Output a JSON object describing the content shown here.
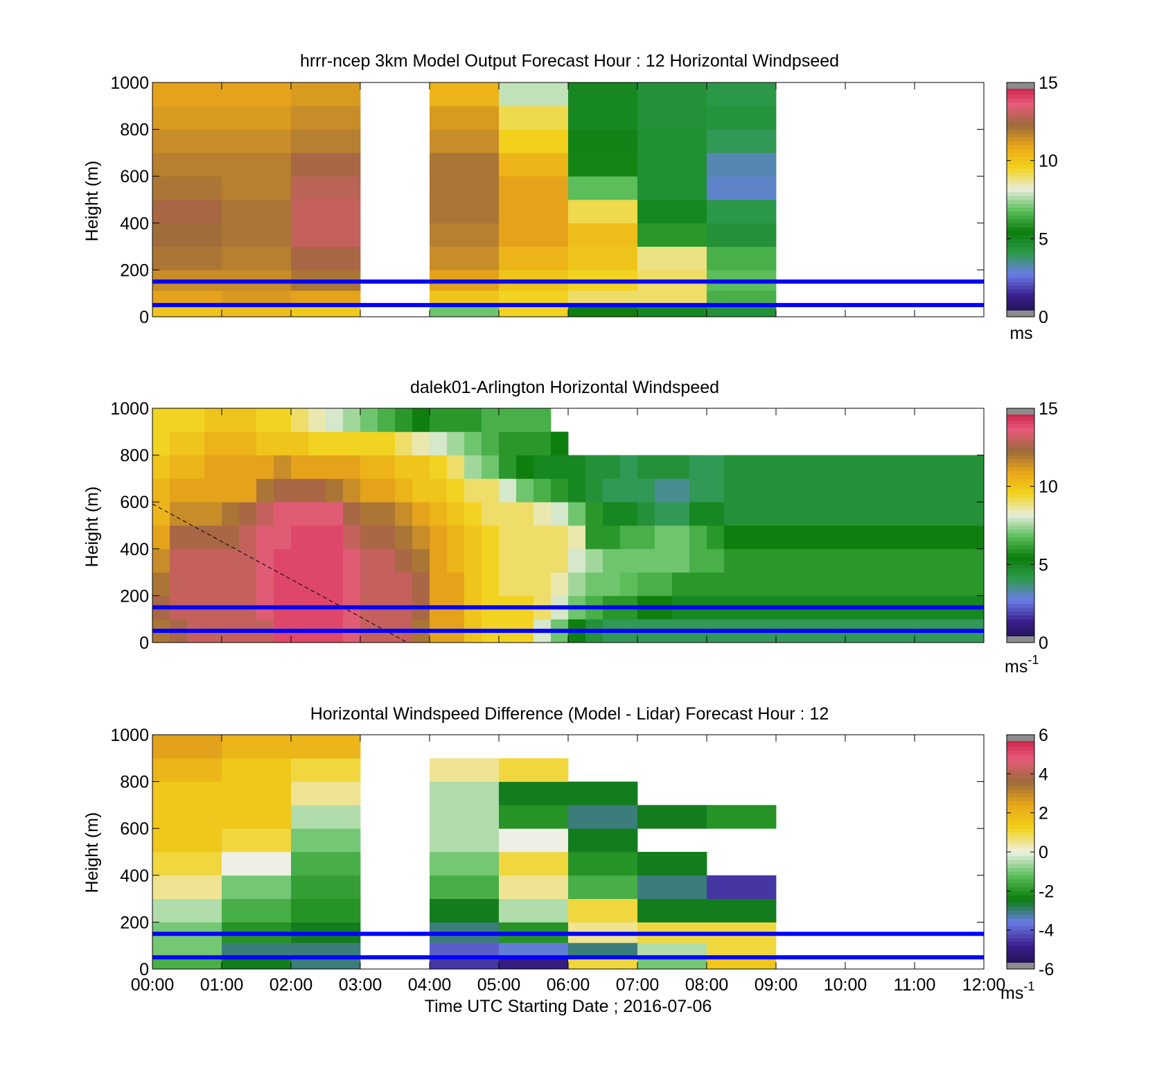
{
  "figure": {
    "xlabel": "Time UTC  Starting Date ; 2016-07-06",
    "xticks": [
      "00:00",
      "01:00",
      "02:00",
      "03:00",
      "04:00",
      "05:00",
      "06:00",
      "07:00",
      "08:00",
      "09:00",
      "10:00",
      "11:00",
      "12:00"
    ]
  },
  "colors": {
    "reference_lines": "#0000ff",
    "colormap_speed": [
      "#1b1045",
      "#3a1e8c",
      "#6a7de8",
      "#2e9a4c",
      "#0b7d0b",
      "#5cbf5c",
      "#e8eedc",
      "#f2d21c",
      "#e9a718",
      "#9c6a3c",
      "#e85a7a",
      "#c2143c"
    ],
    "colormap_diff": [
      "#1b1045",
      "#3a1e8c",
      "#6a7de8",
      "#0b7d0b",
      "#5cbf5c",
      "#eef0e6",
      "#f2d21c",
      "#e9a718",
      "#9c6a3c",
      "#e85a7a",
      "#c2143c"
    ]
  },
  "chart_data": [
    {
      "type": "heatmap",
      "title": "hrrr-ncep 3km Model Output   Forecast Hour : 12 Horizontal Windpseed",
      "ylabel": "Height (m)",
      "xlim": [
        0,
        12
      ],
      "ylim": [
        0,
        1000
      ],
      "yticks": [
        "0",
        "200",
        "400",
        "600",
        "800",
        "1000"
      ],
      "colorbar": {
        "range": [
          0,
          15
        ],
        "ticks": [
          "0",
          "5",
          "10",
          "15"
        ],
        "unit": "ms"
      },
      "reference_heights_m": [
        50,
        150
      ],
      "columns_hours": [
        0,
        1,
        2,
        4,
        5,
        6,
        7,
        8
      ],
      "rows_m": [
        25,
        75,
        150,
        250,
        350,
        450,
        550,
        650,
        750,
        850,
        950
      ],
      "values": [
        [
          10.0,
          10.2,
          9.8,
          7.0,
          9.5,
          5.5,
          5.0,
          4.5
        ],
        [
          11.0,
          11.2,
          11.0,
          10.0,
          9.5,
          9.0,
          9.0,
          6.5
        ],
        [
          11.5,
          11.5,
          12.0,
          11.0,
          10.0,
          9.5,
          9.0,
          6.8
        ],
        [
          12.0,
          11.8,
          12.5,
          11.5,
          10.5,
          10.0,
          8.8,
          6.5
        ],
        [
          12.2,
          12.0,
          13.0,
          11.8,
          11.0,
          10.2,
          6.0,
          4.5
        ],
        [
          12.5,
          12.0,
          13.0,
          12.0,
          11.0,
          9.2,
          5.0,
          4.2
        ],
        [
          12.0,
          11.8,
          12.8,
          12.0,
          11.0,
          6.8,
          4.6,
          3.0
        ],
        [
          11.8,
          11.8,
          12.5,
          12.0,
          10.5,
          5.6,
          4.6,
          3.2
        ],
        [
          11.5,
          11.5,
          11.8,
          11.5,
          9.6,
          5.2,
          4.6,
          4.0
        ],
        [
          11.2,
          11.2,
          11.5,
          11.2,
          9.2,
          5.0,
          4.5,
          4.4
        ],
        [
          11.0,
          11.0,
          11.2,
          10.5,
          7.8,
          5.0,
          4.5,
          4.2
        ]
      ]
    },
    {
      "type": "heatmap",
      "title": "dalek01-Arlington  Horizontal Windspeed",
      "ylabel": "Height (m)",
      "xlim": [
        0,
        12
      ],
      "ylim": [
        0,
        1000
      ],
      "yticks": [
        "0",
        "200",
        "400",
        "600",
        "800",
        "1000"
      ],
      "colorbar": {
        "range": [
          0,
          15
        ],
        "ticks": [
          "0",
          "5",
          "10",
          "15"
        ],
        "unit": "ms",
        "unit_exponent": "-1"
      },
      "reference_heights_m": [
        50,
        150
      ],
      "time_step_hours": 0.25,
      "rows_m": [
        50,
        150,
        250,
        350,
        450,
        550,
        650,
        750,
        850,
        950
      ],
      "values": [
        [
          12.0,
          12.5,
          13.0,
          13.0,
          13.0,
          13.0,
          13.0,
          14.0,
          14.0,
          14.0,
          14.0,
          13.5,
          13.0,
          13.0,
          13.0,
          12.0,
          11.0,
          11.0,
          10.0,
          9.5,
          9.5,
          9.5,
          8.0,
          7.0,
          5.5,
          4.5,
          4.0,
          4.0,
          4.0,
          4.0,
          4.0,
          4.0,
          4.0,
          4.0,
          4.0,
          4.0,
          4.0,
          4.0,
          4.0,
          4.0,
          4.0,
          4.0,
          4.0,
          4.0,
          4.0,
          4.0,
          4.0,
          4.0
        ],
        [
          12.5,
          13.0,
          13.0,
          13.0,
          13.0,
          13.0,
          13.5,
          14.0,
          14.0,
          14.0,
          14.0,
          13.5,
          13.0,
          13.0,
          13.0,
          12.5,
          11.0,
          11.0,
          10.0,
          9.5,
          9.5,
          9.5,
          9.0,
          8.0,
          7.0,
          6.5,
          6.0,
          6.0,
          5.5,
          5.5,
          5.0,
          5.0,
          5.0,
          5.0,
          5.0,
          5.0,
          5.0,
          5.0,
          5.0,
          5.0,
          5.0,
          5.0,
          5.0,
          5.0,
          5.0,
          5.0,
          5.0,
          5.0
        ],
        [
          12.0,
          13.0,
          13.0,
          13.0,
          13.0,
          13.0,
          13.5,
          14.0,
          14.0,
          14.0,
          14.0,
          13.5,
          13.0,
          13.0,
          13.0,
          12.5,
          11.0,
          11.0,
          10.0,
          9.5,
          9.0,
          9.0,
          9.0,
          8.5,
          7.5,
          7.0,
          7.0,
          6.8,
          6.5,
          6.5,
          6.0,
          6.0,
          6.0,
          6.0,
          6.0,
          6.0,
          6.0,
          6.0,
          6.0,
          6.0,
          6.0,
          6.0,
          6.0,
          6.0,
          6.0,
          6.0,
          6.0,
          6.0
        ],
        [
          11.5,
          13.0,
          13.0,
          13.0,
          13.0,
          13.0,
          13.5,
          14.0,
          14.0,
          14.0,
          14.0,
          13.5,
          13.0,
          13.0,
          12.5,
          12.0,
          11.0,
          10.5,
          10.0,
          9.5,
          9.0,
          9.0,
          9.0,
          9.0,
          8.0,
          7.5,
          7.0,
          7.0,
          7.0,
          7.0,
          7.0,
          6.5,
          6.5,
          6.0,
          6.0,
          6.0,
          6.0,
          6.0,
          6.0,
          6.0,
          6.0,
          6.0,
          6.0,
          6.0,
          6.0,
          6.0,
          6.0,
          6.0
        ],
        [
          11.0,
          12.5,
          12.5,
          12.5,
          12.5,
          13.0,
          13.5,
          13.5,
          14.0,
          14.0,
          14.0,
          13.0,
          12.5,
          12.5,
          12.0,
          11.5,
          11.0,
          10.5,
          10.0,
          9.5,
          9.0,
          9.0,
          9.0,
          9.0,
          8.5,
          6.0,
          6.0,
          6.5,
          6.5,
          7.0,
          7.0,
          6.5,
          6.0,
          5.5,
          5.5,
          5.5,
          5.5,
          5.5,
          5.5,
          5.5,
          5.5,
          5.5,
          5.5,
          5.5,
          5.5,
          5.5,
          5.5,
          5.5
        ],
        [
          10.5,
          11.5,
          11.5,
          11.5,
          12.0,
          12.5,
          13.0,
          13.5,
          13.5,
          13.5,
          13.5,
          12.5,
          12.0,
          12.0,
          11.5,
          11.0,
          10.5,
          10.0,
          9.5,
          9.0,
          9.0,
          9.0,
          8.5,
          8.0,
          7.0,
          6.0,
          5.0,
          5.0,
          4.5,
          4.0,
          4.0,
          5.0,
          5.0,
          4.5,
          4.5,
          4.5,
          4.5,
          4.5,
          4.5,
          4.5,
          4.5,
          4.5,
          4.5,
          4.5,
          4.5,
          4.5,
          4.5,
          4.5
        ],
        [
          10.5,
          11.0,
          11.0,
          11.0,
          11.0,
          11.0,
          12.0,
          12.5,
          12.5,
          12.5,
          12.0,
          11.5,
          11.0,
          11.0,
          10.5,
          10.0,
          10.0,
          9.5,
          9.0,
          9.0,
          8.0,
          7.0,
          6.5,
          6.0,
          5.0,
          4.5,
          4.0,
          4.0,
          4.0,
          3.5,
          3.5,
          4.0,
          4.0,
          4.5,
          4.5,
          4.5,
          4.5,
          4.5,
          4.5,
          4.5,
          4.5,
          4.5,
          4.5,
          4.5,
          4.5,
          4.5,
          4.5,
          4.5
        ],
        [
          10.0,
          10.5,
          10.5,
          11.0,
          11.0,
          11.0,
          11.0,
          11.5,
          11.0,
          11.0,
          11.0,
          11.0,
          10.5,
          10.5,
          10.0,
          10.0,
          9.5,
          9.0,
          7.5,
          7.0,
          6.0,
          5.5,
          5.0,
          5.0,
          5.0,
          4.5,
          4.5,
          4.0,
          4.5,
          4.5,
          4.5,
          4.0,
          4.0,
          4.5,
          4.5,
          4.5,
          4.5,
          4.5,
          4.5,
          4.5,
          4.5,
          4.5,
          4.5,
          4.5,
          4.5,
          4.5,
          4.5,
          4.5
        ],
        [
          9.5,
          10.0,
          10.0,
          10.5,
          10.5,
          10.5,
          10.0,
          10.0,
          10.0,
          9.5,
          9.5,
          9.5,
          9.5,
          9.5,
          9.0,
          8.5,
          8.0,
          7.5,
          7.0,
          6.5,
          6.0,
          6.0,
          6.0,
          5.5,
          null,
          null,
          null,
          null,
          null,
          null,
          null,
          null,
          null,
          null,
          null,
          null,
          null,
          null,
          null,
          null,
          null,
          null,
          null,
          null,
          null,
          null,
          null,
          null
        ],
        [
          9.5,
          9.5,
          9.5,
          10.0,
          10.0,
          10.0,
          9.5,
          9.5,
          9.0,
          8.5,
          8.0,
          7.5,
          7.0,
          6.5,
          6.0,
          5.5,
          6.0,
          6.0,
          6.0,
          6.5,
          6.5,
          6.5,
          6.5,
          null,
          null,
          null,
          null,
          null,
          null,
          null,
          null,
          null,
          null,
          null,
          null,
          null,
          null,
          null,
          null,
          null,
          null,
          null,
          null,
          null,
          null,
          null,
          null,
          null
        ]
      ]
    },
    {
      "type": "heatmap",
      "title": "Horizontal Windspeed Difference (Model - Lidar) Forecast Hour : 12",
      "ylabel": "Height (m)",
      "xlim": [
        0,
        12
      ],
      "ylim": [
        0,
        1000
      ],
      "yticks": [
        "0",
        "200",
        "400",
        "600",
        "800",
        "1000"
      ],
      "colorbar": {
        "range": [
          -6,
          6
        ],
        "ticks": [
          "-6",
          "-4",
          "-2",
          "0",
          "2",
          "4",
          "6"
        ],
        "unit": "ms",
        "unit_exponent": "-1"
      },
      "reference_heights_m": [
        50,
        150
      ],
      "columns_hours": [
        0,
        1,
        2,
        4,
        5,
        6,
        7,
        8
      ],
      "rows_m": [
        25,
        75,
        150,
        250,
        350,
        450,
        550,
        650,
        750,
        850,
        950
      ],
      "values": [
        [
          -1.5,
          -2.5,
          -3.0,
          -4.5,
          -5.0,
          1.0,
          -1.0,
          1.5
        ],
        [
          -1.0,
          -3.0,
          -3.0,
          -4.0,
          -3.5,
          -3.0,
          -0.5,
          1.0
        ],
        [
          -1.0,
          -2.0,
          -2.5,
          -3.0,
          -2.0,
          0.5,
          1.0,
          1.0
        ],
        [
          -0.5,
          -1.5,
          -2.0,
          -2.5,
          -0.5,
          1.0,
          -2.5,
          -2.5
        ],
        [
          0.5,
          -1.0,
          -1.8,
          -1.5,
          0.5,
          -1.5,
          -3.0,
          -4.5
        ],
        [
          1.0,
          0.0,
          -1.5,
          -1.0,
          1.0,
          -2.0,
          -2.5,
          null
        ],
        [
          1.5,
          1.0,
          -1.0,
          -0.5,
          0.0,
          -2.5,
          null,
          null
        ],
        [
          1.5,
          1.5,
          -0.5,
          -0.5,
          -2.0,
          -3.0,
          -2.5,
          -2.0
        ],
        [
          1.5,
          1.5,
          0.5,
          -0.5,
          -2.5,
          -2.5,
          null,
          null
        ],
        [
          2.0,
          1.5,
          1.0,
          0.5,
          1.0,
          null,
          null,
          null
        ],
        [
          2.5,
          2.0,
          2.0,
          null,
          null,
          null,
          null,
          null
        ]
      ]
    }
  ]
}
